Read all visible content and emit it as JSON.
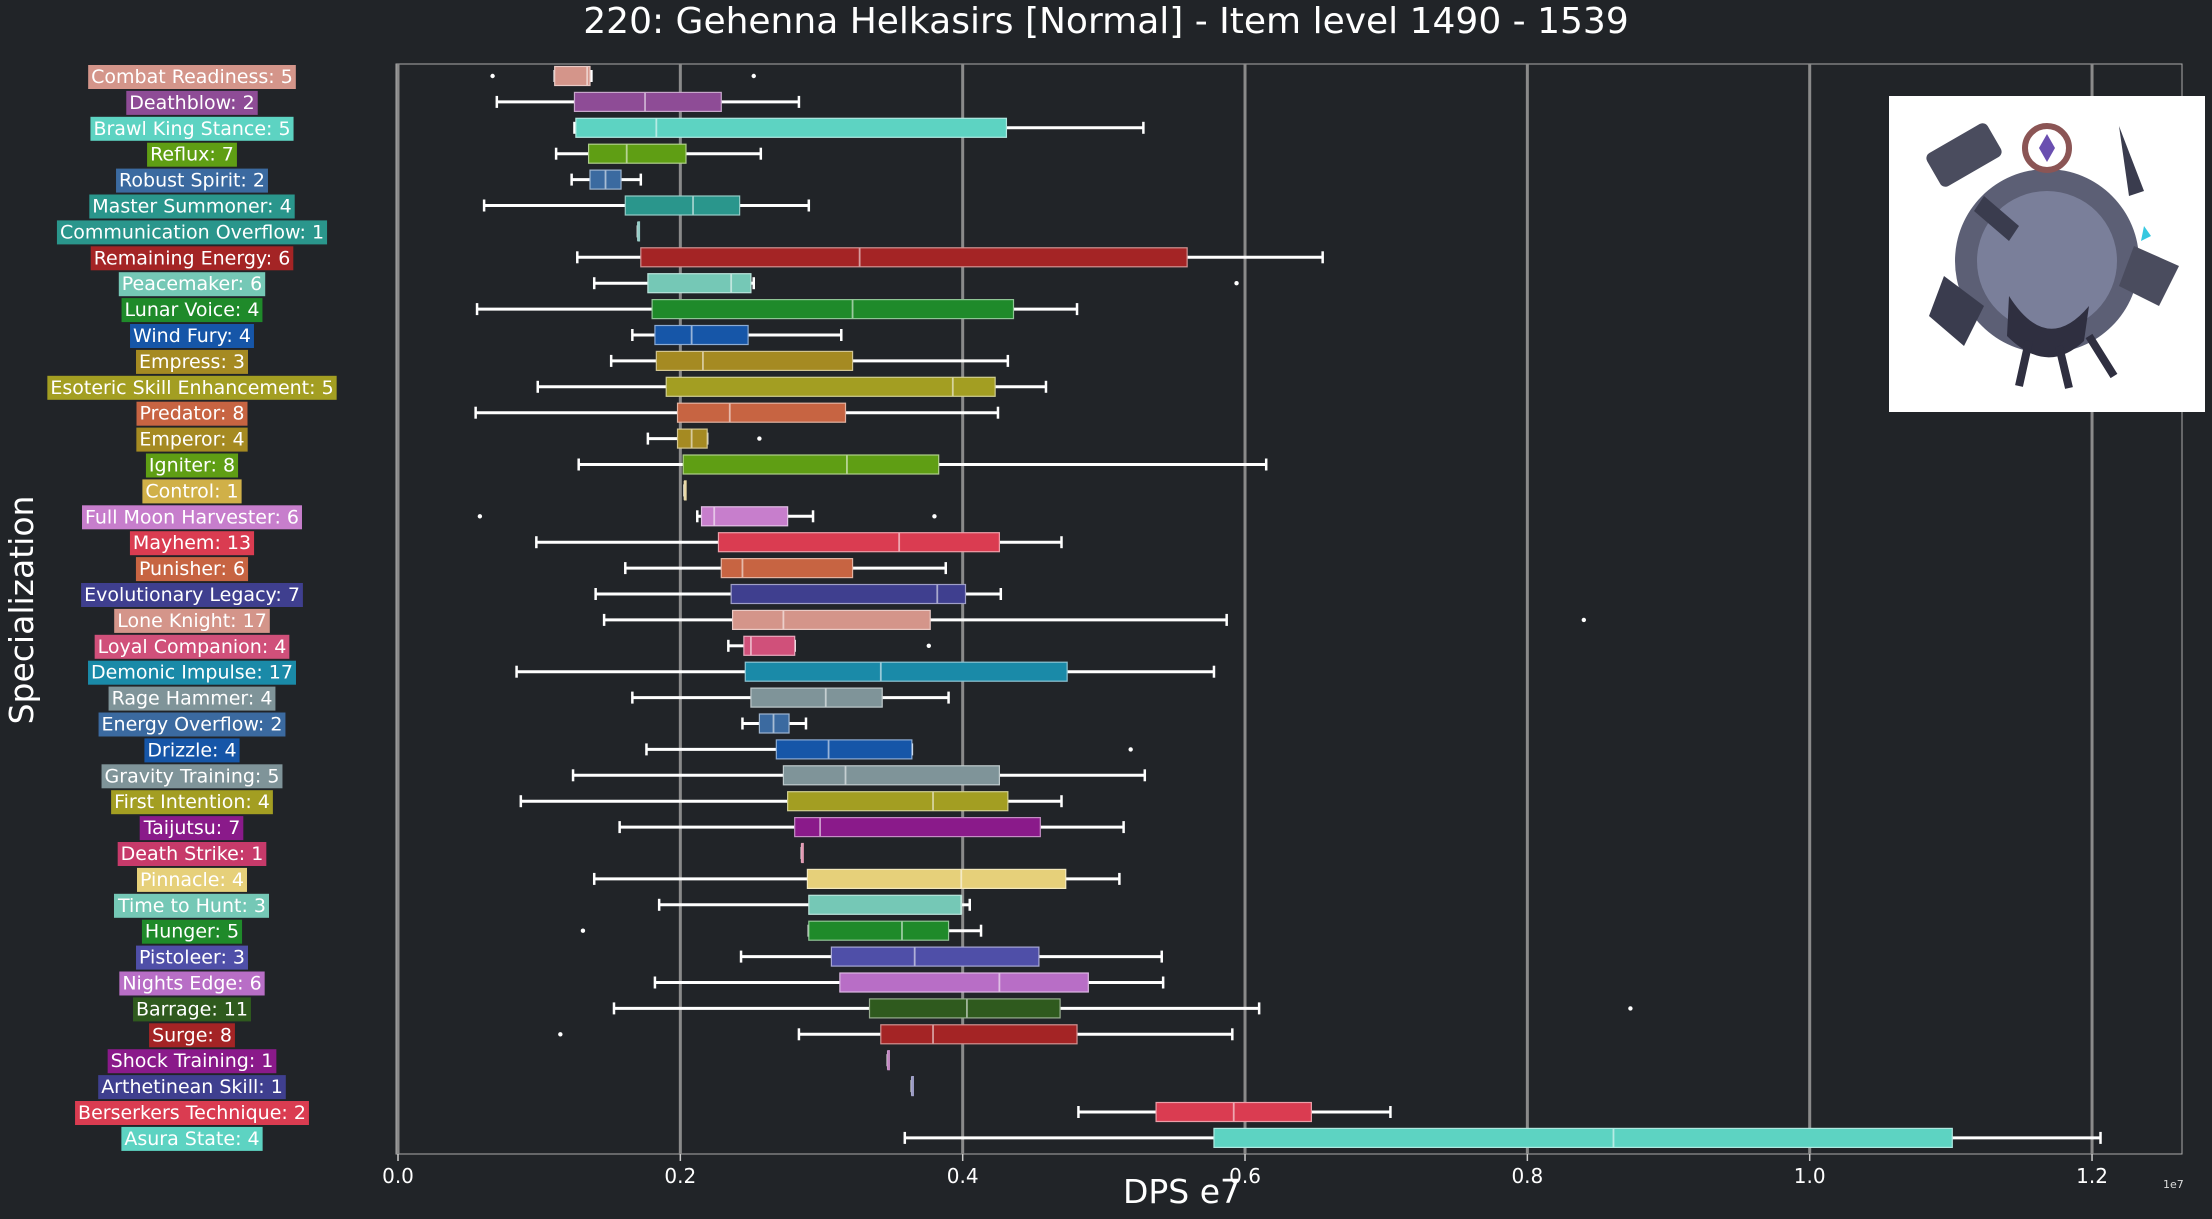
{
  "chart_data": {
    "type": "box",
    "title": "220: Gehenna Helkasirs [Normal] - Item level 1490 - 1539",
    "xlabel": "DPS e7",
    "ylabel": "Specialization",
    "x_exponent_label": "1e7",
    "xlim": [
      0,
      1.26
    ],
    "xticks": [
      0.0,
      0.2,
      0.4,
      0.6,
      0.8,
      1.0,
      1.2
    ],
    "xtick_labels": [
      "0.0",
      "0.2",
      "0.4",
      "0.6",
      "0.8",
      "1.0",
      "1.2"
    ],
    "grid": "vertical",
    "series": [
      {
        "label": "Combat Readiness: 5",
        "color": "#d4958a",
        "whisker_low": 0.111,
        "q1": 0.111,
        "median": 0.134,
        "q3": 0.136,
        "whisker_high": 0.137,
        "outliers": [
          0.067,
          0.252
        ]
      },
      {
        "label": "Deathblow: 2",
        "color": "#8e4c96",
        "whisker_low": 0.07,
        "q1": 0.125,
        "median": 0.175,
        "q3": 0.229,
        "whisker_high": 0.284,
        "outliers": []
      },
      {
        "label": "Brawl King Stance: 5",
        "color": "#5dd3c2",
        "whisker_low": 0.125,
        "q1": 0.126,
        "median": 0.183,
        "q3": 0.431,
        "whisker_high": 0.528,
        "outliers": []
      },
      {
        "label": "Reflux: 7",
        "color": "#5f9e14",
        "whisker_low": 0.112,
        "q1": 0.135,
        "median": 0.162,
        "q3": 0.204,
        "whisker_high": 0.257,
        "outliers": []
      },
      {
        "label": "Robust Spirit: 2",
        "color": "#3b6aa0",
        "whisker_low": 0.123,
        "q1": 0.136,
        "median": 0.147,
        "q3": 0.158,
        "whisker_high": 0.172,
        "outliers": []
      },
      {
        "label": "Master Summoner: 4",
        "color": "#2a968c",
        "whisker_low": 0.061,
        "q1": 0.161,
        "median": 0.209,
        "q3": 0.242,
        "whisker_high": 0.291,
        "outliers": []
      },
      {
        "label": "Communication Overflow: 1",
        "color": "#2a968c",
        "whisker_low": 0.17,
        "q1": 0.17,
        "median": 0.17,
        "q3": 0.17,
        "whisker_high": 0.17,
        "outliers": []
      },
      {
        "label": "Remaining Energy: 6",
        "color": "#a42425",
        "whisker_low": 0.127,
        "q1": 0.172,
        "median": 0.327,
        "q3": 0.559,
        "whisker_high": 0.655,
        "outliers": []
      },
      {
        "label": "Peacemaker: 6",
        "color": "#75c8b6",
        "whisker_low": 0.139,
        "q1": 0.177,
        "median": 0.236,
        "q3": 0.25,
        "whisker_high": 0.252,
        "outliers": [
          0.594
        ]
      },
      {
        "label": "Lunar Voice: 4",
        "color": "#1f8a2a",
        "whisker_low": 0.056,
        "q1": 0.18,
        "median": 0.322,
        "q3": 0.436,
        "whisker_high": 0.481,
        "outliers": []
      },
      {
        "label": "Wind Fury: 4",
        "color": "#1656a8",
        "whisker_low": 0.166,
        "q1": 0.182,
        "median": 0.208,
        "q3": 0.248,
        "whisker_high": 0.314,
        "outliers": []
      },
      {
        "label": "Empress: 3",
        "color": "#a58a22",
        "whisker_low": 0.151,
        "q1": 0.183,
        "median": 0.216,
        "q3": 0.322,
        "whisker_high": 0.432,
        "outliers": []
      },
      {
        "label": "Esoteric Skill Enhancement: 5",
        "color": "#a39e22",
        "whisker_low": 0.099,
        "q1": 0.19,
        "median": 0.393,
        "q3": 0.423,
        "whisker_high": 0.459,
        "outliers": []
      },
      {
        "label": "Predator: 8",
        "color": "#c76442",
        "whisker_low": 0.055,
        "q1": 0.198,
        "median": 0.235,
        "q3": 0.317,
        "whisker_high": 0.425,
        "outliers": []
      },
      {
        "label": "Emperor: 4",
        "color": "#a58a22",
        "whisker_low": 0.177,
        "q1": 0.198,
        "median": 0.208,
        "q3": 0.219,
        "whisker_high": 0.219,
        "outliers": [
          0.256
        ]
      },
      {
        "label": "Igniter: 8",
        "color": "#5f9e14",
        "whisker_low": 0.128,
        "q1": 0.202,
        "median": 0.318,
        "q3": 0.383,
        "whisker_high": 0.615,
        "outliers": []
      },
      {
        "label": "Control: 1",
        "color": "#d0b048",
        "whisker_low": 0.203,
        "q1": 0.203,
        "median": 0.203,
        "q3": 0.203,
        "whisker_high": 0.203,
        "outliers": []
      },
      {
        "label": "Full Moon Harvester: 6",
        "color": "#c77ecc",
        "whisker_low": 0.212,
        "q1": 0.215,
        "median": 0.224,
        "q3": 0.276,
        "whisker_high": 0.294,
        "outliers": [
          0.058,
          0.38
        ]
      },
      {
        "label": "Mayhem: 13",
        "color": "#da3c51",
        "whisker_low": 0.098,
        "q1": 0.227,
        "median": 0.355,
        "q3": 0.426,
        "whisker_high": 0.47,
        "outliers": []
      },
      {
        "label": "Punisher: 6",
        "color": "#c76442",
        "whisker_low": 0.161,
        "q1": 0.229,
        "median": 0.244,
        "q3": 0.322,
        "whisker_high": 0.388,
        "outliers": []
      },
      {
        "label": "Evolutionary Legacy: 7",
        "color": "#3f3f8f",
        "whisker_low": 0.14,
        "q1": 0.236,
        "median": 0.382,
        "q3": 0.402,
        "whisker_high": 0.427,
        "outliers": []
      },
      {
        "label": "Lone Knight: 17",
        "color": "#d4958a",
        "whisker_low": 0.146,
        "q1": 0.237,
        "median": 0.273,
        "q3": 0.377,
        "whisker_high": 0.587,
        "outliers": [
          0.84
        ]
      },
      {
        "label": "Loyal Companion: 4",
        "color": "#d0507a",
        "whisker_low": 0.234,
        "q1": 0.245,
        "median": 0.25,
        "q3": 0.281,
        "whisker_high": 0.281,
        "outliers": [
          0.376
        ]
      },
      {
        "label": "Demonic Impulse: 17",
        "color": "#1a8aa8",
        "whisker_low": 0.084,
        "q1": 0.246,
        "median": 0.342,
        "q3": 0.474,
        "whisker_high": 0.578,
        "outliers": []
      },
      {
        "label": "Rage Hammer: 4",
        "color": "#7f9499",
        "whisker_low": 0.166,
        "q1": 0.25,
        "median": 0.303,
        "q3": 0.343,
        "whisker_high": 0.39,
        "outliers": []
      },
      {
        "label": "Energy Overflow: 2",
        "color": "#3b6aa0",
        "whisker_low": 0.244,
        "q1": 0.256,
        "median": 0.266,
        "q3": 0.277,
        "whisker_high": 0.289,
        "outliers": []
      },
      {
        "label": "Drizzle: 4",
        "color": "#1656a8",
        "whisker_low": 0.176,
        "q1": 0.268,
        "median": 0.305,
        "q3": 0.364,
        "whisker_high": 0.364,
        "outliers": [
          0.519
        ]
      },
      {
        "label": "Gravity Training: 5",
        "color": "#7f9499",
        "whisker_low": 0.124,
        "q1": 0.273,
        "median": 0.317,
        "q3": 0.426,
        "whisker_high": 0.529,
        "outliers": []
      },
      {
        "label": "First Intention: 4",
        "color": "#a39e22",
        "whisker_low": 0.087,
        "q1": 0.276,
        "median": 0.379,
        "q3": 0.432,
        "whisker_high": 0.47,
        "outliers": []
      },
      {
        "label": "Taijutsu: 7",
        "color": "#8a1a8a",
        "whisker_low": 0.157,
        "q1": 0.281,
        "median": 0.299,
        "q3": 0.455,
        "whisker_high": 0.514,
        "outliers": []
      },
      {
        "label": "Death Strike: 1",
        "color": "#c73a6a",
        "whisker_low": 0.286,
        "q1": 0.286,
        "median": 0.286,
        "q3": 0.286,
        "whisker_high": 0.286,
        "outliers": []
      },
      {
        "label": "Pinnacle: 4",
        "color": "#e6d07a",
        "whisker_low": 0.139,
        "q1": 0.29,
        "median": 0.399,
        "q3": 0.473,
        "whisker_high": 0.511,
        "outliers": []
      },
      {
        "label": "Time to Hunt: 3",
        "color": "#75c8b6",
        "whisker_low": 0.185,
        "q1": 0.291,
        "median": 0.399,
        "q3": 0.399,
        "whisker_high": 0.405,
        "outliers": []
      },
      {
        "label": "Hunger: 5",
        "color": "#1f8a2a",
        "whisker_low": 0.291,
        "q1": 0.291,
        "median": 0.357,
        "q3": 0.39,
        "whisker_high": 0.413,
        "outliers": [
          0.131
        ]
      },
      {
        "label": "Pistoleer: 3",
        "color": "#4f4fa8",
        "whisker_low": 0.243,
        "q1": 0.307,
        "median": 0.366,
        "q3": 0.454,
        "whisker_high": 0.541,
        "outliers": []
      },
      {
        "label": "Nights Edge: 6",
        "color": "#b86ec6",
        "whisker_low": 0.182,
        "q1": 0.313,
        "median": 0.426,
        "q3": 0.489,
        "whisker_high": 0.542,
        "outliers": []
      },
      {
        "label": "Barrage: 11",
        "color": "#2f5a1e",
        "whisker_low": 0.153,
        "q1": 0.334,
        "median": 0.403,
        "q3": 0.469,
        "whisker_high": 0.61,
        "outliers": [
          0.873
        ]
      },
      {
        "label": "Surge: 8",
        "color": "#a42425",
        "whisker_low": 0.284,
        "q1": 0.342,
        "median": 0.379,
        "q3": 0.481,
        "whisker_high": 0.591,
        "outliers": [
          0.115
        ]
      },
      {
        "label": "Shock Training: 1",
        "color": "#8a1a8a",
        "whisker_low": 0.347,
        "q1": 0.347,
        "median": 0.347,
        "q3": 0.347,
        "whisker_high": 0.347,
        "outliers": []
      },
      {
        "label": "Arthetinean Skill: 1",
        "color": "#3f3f8f",
        "whisker_low": 0.364,
        "q1": 0.364,
        "median": 0.364,
        "q3": 0.364,
        "whisker_high": 0.364,
        "outliers": []
      },
      {
        "label": "Berserkers Technique: 2",
        "color": "#da3c51",
        "whisker_low": 0.482,
        "q1": 0.537,
        "median": 0.592,
        "q3": 0.647,
        "whisker_high": 0.703,
        "outliers": []
      },
      {
        "label": "Asura State: 4",
        "color": "#5dd3c2",
        "whisker_low": 0.359,
        "q1": 0.578,
        "median": 0.861,
        "q3": 1.101,
        "whisker_high": 1.206,
        "outliers": []
      }
    ]
  },
  "image": {
    "icon": "boss-portrait-icon"
  }
}
